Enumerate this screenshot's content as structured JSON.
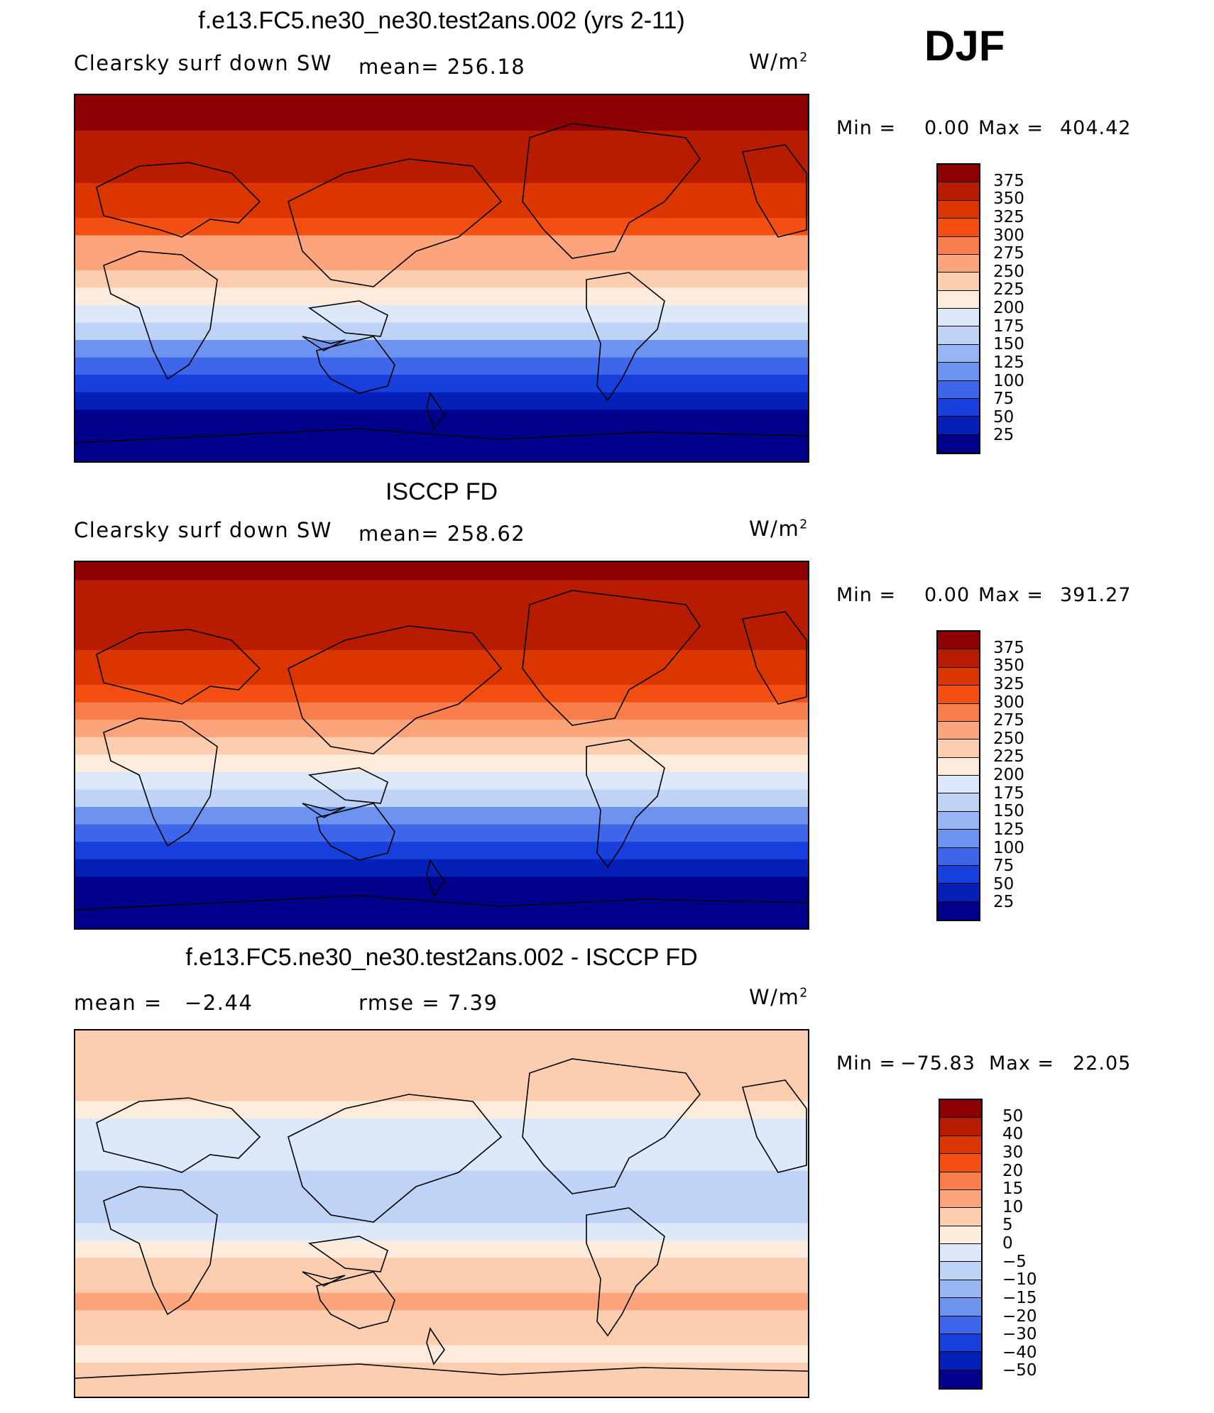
{
  "season": "DJF",
  "panels": [
    {
      "title": "f.e13.FC5.ne30_ne30.test2ans.002 (yrs 2-11)",
      "var_label": "Clearsky surf down SW",
      "stat1": "mean= 256.18",
      "stat2": "",
      "units": "W/m",
      "units_sup": "2",
      "min_label": "Min =",
      "min_value": "0.00",
      "max_label": "Max =",
      "max_value": "404.42",
      "colorbar": {
        "ticks": [
          "375",
          "350",
          "325",
          "300",
          "275",
          "250",
          "225",
          "200",
          "175",
          "150",
          "125",
          "100",
          "75",
          "50",
          "25"
        ],
        "colors": [
          "#8b0000",
          "#b81c00",
          "#dc3600",
          "#f44f12",
          "#fa7d4c",
          "#fca47c",
          "#fdcdb0",
          "#fdebdb",
          "#dce9fa",
          "#bfd3f7",
          "#98b5f3",
          "#6d93f0",
          "#3e66ea",
          "#173fdc",
          "#0420b8",
          "#00008b"
        ]
      },
      "chart_data": {
        "type": "heatmap",
        "projection": "cylindrical-equidistant-global",
        "zonal_mean_values": [
          0,
          0,
          0,
          25,
          50,
          80,
          110,
          150,
          175,
          200,
          225,
          250,
          270,
          300,
          325,
          340,
          350,
          360,
          365,
          375,
          385
        ],
        "latitude_range": [
          -90,
          90
        ],
        "longitude_center": 180
      }
    },
    {
      "title": "ISCCP FD",
      "var_label": "Clearsky surf down SW",
      "stat1": "mean= 258.62",
      "stat2": "",
      "units": "W/m",
      "units_sup": "2",
      "min_label": "Min =",
      "min_value": "0.00",
      "max_label": "Max =",
      "max_value": "391.27",
      "colorbar": {
        "ticks": [
          "375",
          "350",
          "325",
          "300",
          "275",
          "250",
          "225",
          "200",
          "175",
          "150",
          "125",
          "100",
          "75",
          "50",
          "25"
        ],
        "colors": [
          "#8b0000",
          "#b81c00",
          "#dc3600",
          "#f44f12",
          "#fa7d4c",
          "#fca47c",
          "#fdcdb0",
          "#fdebdb",
          "#dce9fa",
          "#bfd3f7",
          "#98b5f3",
          "#6d93f0",
          "#3e66ea",
          "#173fdc",
          "#0420b8",
          "#00008b"
        ]
      },
      "chart_data": {
        "type": "heatmap",
        "projection": "cylindrical-equidistant-global",
        "zonal_mean_values": [
          0,
          0,
          0,
          25,
          50,
          80,
          110,
          150,
          175,
          200,
          225,
          250,
          275,
          300,
          325,
          345,
          350,
          355,
          360,
          370,
          380
        ],
        "latitude_range": [
          -90,
          90
        ],
        "longitude_center": 180
      }
    },
    {
      "title": "f.e13.FC5.ne30_ne30.test2ans.002 - ISCCP FD",
      "var_label": "mean =",
      "stat1": "−2.44",
      "stat2": "rmse =   7.39",
      "units": "W/m",
      "units_sup": "2",
      "min_label": "Min =",
      "min_value": "−75.83",
      "max_label": "Max =",
      "max_value": "22.05",
      "colorbar": {
        "ticks": [
          "50",
          "40",
          "30",
          "20",
          "15",
          "10",
          "5",
          "0",
          "−5",
          "−10",
          "−15",
          "−20",
          "−30",
          "−40",
          "−50"
        ],
        "colors": [
          "#8b0000",
          "#b81c00",
          "#dc3600",
          "#f44f12",
          "#fa7d4c",
          "#fca47c",
          "#fdcdb0",
          "#fdebdb",
          "#dce9fa",
          "#bfd3f7",
          "#98b5f3",
          "#6d93f0",
          "#3e66ea",
          "#173fdc",
          "#0420b8",
          "#00008b"
        ]
      },
      "chart_data": {
        "type": "heatmap",
        "projection": "cylindrical-equidistant-global",
        "zonal_mean_values": [
          5,
          5,
          0,
          5,
          5,
          10,
          5,
          5,
          0,
          -5,
          -10,
          -10,
          -10,
          -5,
          -5,
          -5,
          0,
          5,
          5,
          5,
          5
        ],
        "latitude_range": [
          -90,
          90
        ],
        "longitude_center": 180
      }
    }
  ]
}
